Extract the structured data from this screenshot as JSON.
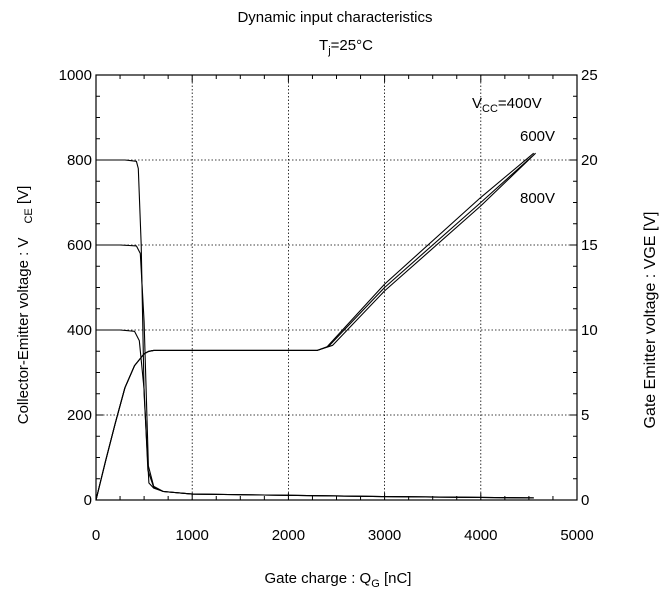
{
  "chart_data": {
    "type": "line",
    "title": "Dynamic input characteristics",
    "subtitle": {
      "main": "T",
      "sub": "j",
      "rest": "=25°C"
    },
    "xlabel": {
      "main": "Gate charge  :  Q",
      "sub": "G",
      "rest": "   [nC]"
    },
    "ylabel_left": {
      "main": "Collector-Emitter voltage  :  V",
      "sub": "CE",
      "rest": "  [V]"
    },
    "ylabel_right": "Gate Emitter voltage : VGE [V]",
    "xlim": [
      0,
      5000
    ],
    "ylim_left": [
      0,
      1000
    ],
    "ylim_right": [
      0,
      25
    ],
    "x_ticks": [
      "0",
      "1000",
      "2000",
      "3000",
      "4000",
      "5000"
    ],
    "y_left_ticks": [
      "0",
      "200",
      "400",
      "600",
      "800",
      "1000"
    ],
    "y_right_ticks": [
      "0",
      "5",
      "10",
      "15",
      "20",
      "25"
    ],
    "grid": true,
    "annotations": [
      {
        "prefix": "V",
        "sub": "CC",
        "text": "=400V"
      },
      {
        "text": "600V"
      },
      {
        "text": "800V"
      }
    ],
    "series": [
      {
        "axis": "left",
        "x": [
          0,
          250,
          400,
          450,
          500,
          540,
          600,
          700,
          1000,
          2000,
          3000,
          4000,
          4550
        ],
        "values": [
          400,
          400,
          397,
          375,
          260,
          70,
          30,
          20,
          14,
          11,
          8,
          6,
          5
        ]
      },
      {
        "axis": "left",
        "x": [
          0,
          250,
          420,
          460,
          500,
          545,
          600,
          700,
          1000,
          2000,
          3000,
          4000,
          4550
        ],
        "values": [
          600,
          600,
          598,
          580,
          420,
          80,
          32,
          20,
          14,
          11,
          8,
          6,
          5
        ]
      },
      {
        "axis": "left",
        "x": [
          0,
          300,
          420,
          440,
          470,
          500,
          550,
          600,
          700,
          1000,
          2000,
          3000,
          4000,
          4550
        ],
        "values": [
          800,
          800,
          797,
          780,
          600,
          250,
          40,
          28,
          20,
          14,
          11,
          8,
          6,
          5
        ]
      },
      {
        "axis": "right",
        "x": [
          0,
          100,
          200,
          300,
          400,
          500,
          550,
          600,
          1000,
          2000,
          2300,
          2400,
          3000,
          4000,
          4550
        ],
        "values": [
          0,
          2.3,
          4.5,
          6.6,
          7.9,
          8.6,
          8.75,
          8.8,
          8.8,
          8.8,
          8.8,
          9.0,
          12.7,
          17.8,
          20.4
        ]
      },
      {
        "axis": "right",
        "x": [
          0,
          100,
          200,
          300,
          400,
          500,
          550,
          600,
          1000,
          2000,
          2300,
          2420,
          3000,
          4000,
          4530
        ],
        "values": [
          0,
          2.3,
          4.5,
          6.6,
          7.9,
          8.6,
          8.75,
          8.8,
          8.8,
          8.8,
          8.8,
          9.05,
          12.5,
          17.5,
          20.2
        ]
      },
      {
        "axis": "right",
        "x": [
          0,
          100,
          200,
          300,
          400,
          500,
          550,
          600,
          1000,
          2000,
          2300,
          2460,
          3000,
          4000,
          4570
        ],
        "values": [
          0,
          2.3,
          4.5,
          6.6,
          7.9,
          8.6,
          8.75,
          8.8,
          8.8,
          8.8,
          8.8,
          9.1,
          12.3,
          17.3,
          20.4
        ]
      }
    ]
  }
}
